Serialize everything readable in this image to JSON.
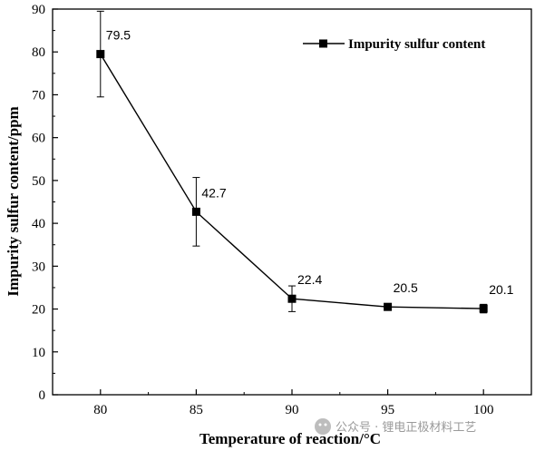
{
  "chart_data": {
    "type": "line",
    "xlabel": "Temperature of reaction/°C",
    "ylabel": "Impurity sulfur content/ppm",
    "x": [
      80,
      85,
      90,
      95,
      100
    ],
    "x_ticks": [
      "80",
      "85",
      "90",
      "95",
      "100"
    ],
    "xlim": [
      77.5,
      102.5
    ],
    "ylim": [
      0,
      90
    ],
    "y_ticks": [
      "0",
      "10",
      "20",
      "30",
      "40",
      "50",
      "60",
      "70",
      "80",
      "90"
    ],
    "series": [
      {
        "name": "Impurity sulfur content",
        "values": [
          79.5,
          42.7,
          22.4,
          20.5,
          20.1
        ],
        "labels": [
          "79.5",
          "42.7",
          "22.4",
          "20.5",
          "20.1"
        ],
        "error": [
          10.0,
          8.0,
          3.0,
          0.5,
          1.0
        ],
        "color": "#000000",
        "marker": "square"
      }
    ],
    "legend_position": "top-right",
    "grid": false
  },
  "watermark": {
    "text": "公众号 · 锂电正极材料工艺"
  }
}
